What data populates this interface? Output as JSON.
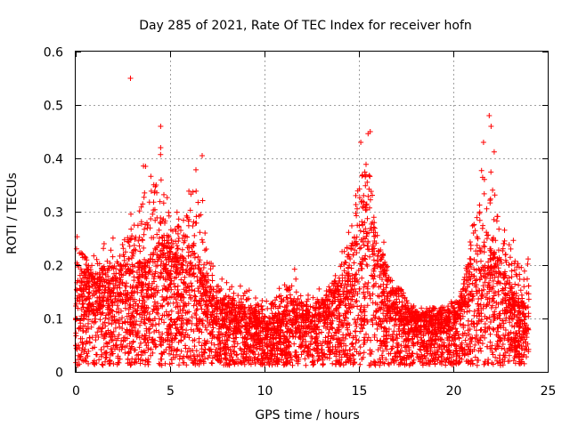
{
  "chart_data": {
    "type": "scatter",
    "title": "Day 285 of 2021, Rate Of TEC Index for receiver hofn",
    "xlabel": "GPS time / hours",
    "ylabel": "ROTI / TECUs",
    "xlim": [
      0,
      25
    ],
    "ylim": [
      0,
      0.6
    ],
    "x_ticks": [
      "0",
      "5",
      "10",
      "15",
      "20",
      "25"
    ],
    "y_ticks": [
      "0",
      "0.1",
      "0.2",
      "0.3",
      "0.4",
      "0.5",
      "0.6"
    ],
    "grid": true,
    "marker": "+",
    "color": "#ff0000",
    "series": [
      {
        "name": "ROTI",
        "hours": [
          0.0,
          0.5,
          1.0,
          1.5,
          2.0,
          2.5,
          3.0,
          3.5,
          4.0,
          4.5,
          5.0,
          5.5,
          6.0,
          6.5,
          7.0,
          7.5,
          8.0,
          8.5,
          9.0,
          9.5,
          10.0,
          10.5,
          11.0,
          11.5,
          12.0,
          12.5,
          13.0,
          13.5,
          14.0,
          14.5,
          15.0,
          15.5,
          16.0,
          16.5,
          17.0,
          17.5,
          18.0,
          18.5,
          19.0,
          19.5,
          20.0,
          20.5,
          21.0,
          21.5,
          22.0,
          22.5,
          23.0,
          23.5,
          24.0
        ],
        "typical": [
          0.1,
          0.12,
          0.11,
          0.12,
          0.12,
          0.13,
          0.12,
          0.13,
          0.14,
          0.16,
          0.15,
          0.14,
          0.15,
          0.12,
          0.1,
          0.09,
          0.08,
          0.08,
          0.07,
          0.07,
          0.06,
          0.06,
          0.07,
          0.08,
          0.07,
          0.07,
          0.08,
          0.09,
          0.1,
          0.14,
          0.18,
          0.2,
          0.15,
          0.11,
          0.1,
          0.08,
          0.07,
          0.07,
          0.07,
          0.07,
          0.08,
          0.1,
          0.14,
          0.15,
          0.15,
          0.12,
          0.1,
          0.08,
          0.07
        ],
        "upper": [
          0.29,
          0.25,
          0.23,
          0.24,
          0.26,
          0.28,
          0.33,
          0.38,
          0.42,
          0.46,
          0.33,
          0.32,
          0.35,
          0.4,
          0.25,
          0.19,
          0.17,
          0.17,
          0.17,
          0.15,
          0.15,
          0.16,
          0.18,
          0.2,
          0.16,
          0.17,
          0.16,
          0.19,
          0.24,
          0.31,
          0.43,
          0.45,
          0.3,
          0.22,
          0.17,
          0.14,
          0.13,
          0.13,
          0.13,
          0.12,
          0.13,
          0.17,
          0.32,
          0.42,
          0.48,
          0.3,
          0.26,
          0.24,
          0.22
        ],
        "outliers": [
          [
            2.9,
            0.55
          ],
          [
            4.5,
            0.46
          ],
          [
            4.5,
            0.42
          ],
          [
            21.6,
            0.43
          ],
          [
            21.9,
            0.48
          ],
          [
            15.6,
            0.45
          ],
          [
            6.7,
            0.405
          ],
          [
            22.0,
            0.46
          ],
          [
            15.1,
            0.43
          ],
          [
            3.7,
            0.385
          ]
        ]
      }
    ]
  }
}
